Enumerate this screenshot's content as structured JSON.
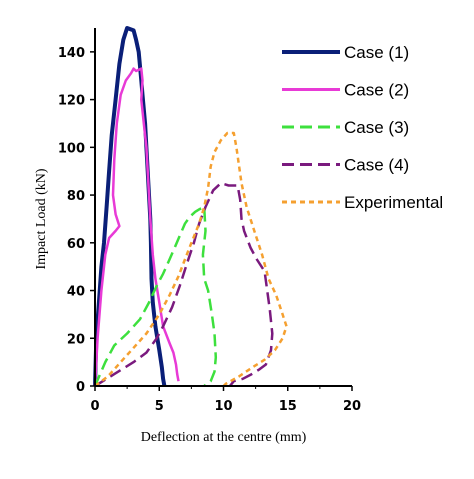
{
  "chart_data": {
    "type": "line",
    "title": "",
    "xlabel": "Deflection at the centre (mm)",
    "ylabel": "Impact Load (kN)",
    "xlim": [
      0,
      20
    ],
    "ylim": [
      0,
      150
    ],
    "x_ticks": [
      "0",
      "5",
      "10",
      "15",
      "20"
    ],
    "y_ticks": [
      "0",
      "20",
      "40",
      "60",
      "80",
      "100",
      "120",
      "140"
    ],
    "grid": false,
    "legend_position": "right",
    "series": [
      {
        "name": "Case (1)",
        "color": "#0a1f78",
        "dash": "solid",
        "points": [
          [
            0,
            0
          ],
          [
            0.1,
            20
          ],
          [
            0.3,
            35
          ],
          [
            0.5,
            50
          ],
          [
            0.7,
            60
          ],
          [
            0.9,
            75
          ],
          [
            1.1,
            90
          ],
          [
            1.3,
            105
          ],
          [
            1.6,
            120
          ],
          [
            1.9,
            135
          ],
          [
            2.2,
            145
          ],
          [
            2.5,
            150
          ],
          [
            3.0,
            149
          ],
          [
            3.2,
            145
          ],
          [
            3.4,
            140
          ],
          [
            3.6,
            128
          ],
          [
            3.7,
            122
          ],
          [
            3.9,
            110
          ],
          [
            4.0,
            100
          ],
          [
            4.1,
            90
          ],
          [
            4.2,
            80
          ],
          [
            4.3,
            70
          ],
          [
            4.35,
            60
          ],
          [
            4.4,
            45
          ],
          [
            4.5,
            35
          ],
          [
            4.7,
            25
          ],
          [
            5.0,
            15
          ],
          [
            5.2,
            8
          ],
          [
            5.3,
            3
          ],
          [
            5.4,
            0
          ]
        ]
      },
      {
        "name": "Case (2)",
        "color": "#e83ad6",
        "dash": "solid",
        "points": [
          [
            0,
            0
          ],
          [
            0.2,
            20
          ],
          [
            0.5,
            40
          ],
          [
            0.8,
            55
          ],
          [
            1.1,
            62
          ],
          [
            1.6,
            65
          ],
          [
            1.9,
            67
          ],
          [
            1.6,
            72
          ],
          [
            1.4,
            80
          ],
          [
            1.5,
            95
          ],
          [
            1.7,
            110
          ],
          [
            2.0,
            122
          ],
          [
            2.4,
            128
          ],
          [
            2.8,
            131
          ],
          [
            3.0,
            133
          ],
          [
            3.2,
            132
          ],
          [
            3.6,
            133
          ],
          [
            3.7,
            128
          ],
          [
            3.6,
            120
          ],
          [
            3.8,
            110
          ],
          [
            4.0,
            100
          ],
          [
            4.1,
            90
          ],
          [
            4.2,
            80
          ],
          [
            4.3,
            70
          ],
          [
            4.5,
            55
          ],
          [
            4.7,
            45
          ],
          [
            5.0,
            35
          ],
          [
            5.3,
            25
          ],
          [
            5.8,
            18
          ],
          [
            6.1,
            14
          ],
          [
            6.3,
            9
          ],
          [
            6.4,
            5
          ],
          [
            6.5,
            2
          ]
        ]
      },
      {
        "name": "Case (3)",
        "color": "#3de03d",
        "dash": "12,6",
        "points": [
          [
            0,
            0
          ],
          [
            0.8,
            10
          ],
          [
            1.5,
            17
          ],
          [
            2.5,
            22
          ],
          [
            3.5,
            28
          ],
          [
            4.2,
            35
          ],
          [
            4.8,
            42
          ],
          [
            5.3,
            47
          ],
          [
            5.8,
            53
          ],
          [
            6.2,
            58
          ],
          [
            6.6,
            63
          ],
          [
            7.0,
            68
          ],
          [
            7.4,
            71
          ],
          [
            7.8,
            73
          ],
          [
            8.1,
            74
          ],
          [
            8.5,
            75
          ],
          [
            8.6,
            65
          ],
          [
            8.4,
            55
          ],
          [
            8.5,
            45
          ],
          [
            8.8,
            40
          ],
          [
            9.1,
            30
          ],
          [
            9.3,
            22
          ],
          [
            9.4,
            12
          ],
          [
            9.3,
            6
          ],
          [
            9.0,
            2
          ],
          [
            8.5,
            0
          ]
        ]
      },
      {
        "name": "Case (4)",
        "color": "#7a1a7e",
        "dash": "12,6",
        "points": [
          [
            0,
            0
          ],
          [
            1.5,
            5
          ],
          [
            3.0,
            10
          ],
          [
            4.0,
            14
          ],
          [
            4.8,
            20
          ],
          [
            5.3,
            25
          ],
          [
            6.0,
            33
          ],
          [
            6.6,
            42
          ],
          [
            7.2,
            52
          ],
          [
            7.7,
            60
          ],
          [
            8.1,
            68
          ],
          [
            8.6,
            75
          ],
          [
            9.2,
            82
          ],
          [
            9.8,
            85
          ],
          [
            10.4,
            84
          ],
          [
            11.1,
            84
          ],
          [
            11.3,
            78
          ],
          [
            11.4,
            70
          ],
          [
            11.6,
            65
          ],
          [
            12.1,
            58
          ],
          [
            12.6,
            53
          ],
          [
            13.2,
            48
          ],
          [
            13.4,
            40
          ],
          [
            13.6,
            32
          ],
          [
            13.8,
            22
          ],
          [
            13.7,
            15
          ],
          [
            13.3,
            9
          ],
          [
            12.8,
            7
          ],
          [
            12.2,
            5
          ],
          [
            11.5,
            3
          ],
          [
            10.8,
            2
          ],
          [
            10.5,
            0
          ]
        ]
      },
      {
        "name": "Experimental",
        "color": "#f5a030",
        "dash": "5,4",
        "points": [
          [
            0,
            0
          ],
          [
            1.0,
            4
          ],
          [
            2.0,
            10
          ],
          [
            3.0,
            16
          ],
          [
            4.0,
            22
          ],
          [
            5.0,
            30
          ],
          [
            5.8,
            38
          ],
          [
            6.5,
            46
          ],
          [
            7.0,
            53
          ],
          [
            7.5,
            60
          ],
          [
            8.1,
            68
          ],
          [
            8.5,
            75
          ],
          [
            8.8,
            83
          ],
          [
            9.0,
            92
          ],
          [
            9.3,
            98
          ],
          [
            9.8,
            103
          ],
          [
            10.3,
            106
          ],
          [
            10.8,
            106
          ],
          [
            11.0,
            100
          ],
          [
            11.4,
            85
          ],
          [
            11.8,
            75
          ],
          [
            12.4,
            65
          ],
          [
            13.0,
            55
          ],
          [
            13.5,
            45
          ],
          [
            14.1,
            38
          ],
          [
            14.6,
            30
          ],
          [
            14.9,
            25
          ],
          [
            14.6,
            20
          ],
          [
            14.0,
            15
          ],
          [
            13.2,
            11
          ],
          [
            12.3,
            8
          ],
          [
            11.2,
            4
          ],
          [
            10.2,
            1
          ],
          [
            10.0,
            0
          ]
        ]
      }
    ]
  }
}
